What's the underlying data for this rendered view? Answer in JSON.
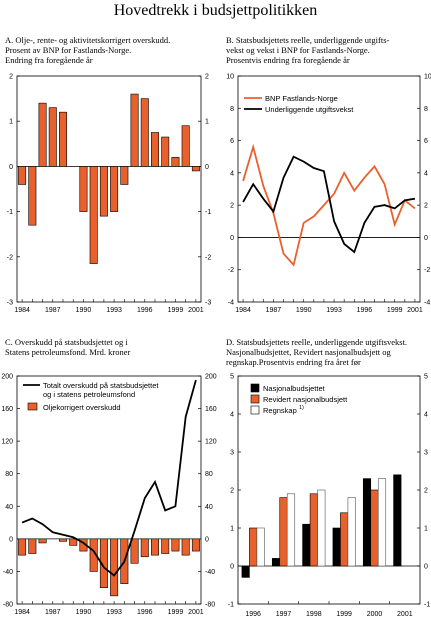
{
  "page_title": "Hovedtrekk i budsjettpolitikken",
  "colors": {
    "orange": "#E8612C",
    "black": "#000000",
    "white": "#ffffff"
  },
  "chart_data": [
    {
      "id": "A",
      "type": "bar",
      "title_lines": [
        "A.  Olje-, rente- og aktivitetskorrigert overskudd.",
        "Prosent av BNP  for Fastlands-Norge.",
        "Endring fra foregående år"
      ],
      "x": [
        1984,
        1985,
        1986,
        1987,
        1988,
        1989,
        1990,
        1991,
        1992,
        1993,
        1994,
        1995,
        1996,
        1997,
        1998,
        1999,
        2000,
        2001
      ],
      "values": [
        -0.4,
        -1.3,
        1.4,
        1.3,
        1.2,
        0.0,
        -1.0,
        -2.15,
        -1.1,
        -1.0,
        -0.4,
        1.6,
        1.5,
        0.75,
        0.65,
        0.2,
        0.9,
        -0.1
      ],
      "x_tick_labels": [
        "1984",
        "1987",
        "1990",
        "1993",
        "1996",
        "1999",
        "2001"
      ],
      "ylim": [
        -3,
        2
      ],
      "y_ticks": [
        -3,
        -2,
        -1,
        0,
        1,
        2
      ],
      "y_tick_labels_left": [
        "-3",
        "-2",
        "-1",
        "0",
        "1",
        "2"
      ],
      "y_tick_labels_right": [
        "-3",
        "-2",
        "-1",
        "0",
        "1",
        "2"
      ],
      "bar_color": "#E8612C"
    },
    {
      "id": "B",
      "type": "line",
      "title_lines": [
        "B.  Statsbudsjettets reelle, underliggende utgifts-",
        "vekst og vekst i BNP for Fastlands-Norge.",
        "Prosentvis endring fra foregående år"
      ],
      "x": [
        1984,
        1985,
        1986,
        1987,
        1988,
        1989,
        1990,
        1991,
        1992,
        1993,
        1994,
        1995,
        1996,
        1997,
        1998,
        1999,
        2000,
        2001
      ],
      "series": [
        {
          "name": "BNP Fastlands-Norge",
          "color": "#E8612C",
          "values": [
            3.5,
            5.6,
            3.2,
            1.5,
            -1.0,
            -1.7,
            0.9,
            1.3,
            2.0,
            2.7,
            4.0,
            2.9,
            3.7,
            4.4,
            3.3,
            0.8,
            2.3,
            1.8
          ]
        },
        {
          "name": "Underliggende utgiftsvekst",
          "color": "#000000",
          "values": [
            2.2,
            3.3,
            2.4,
            1.6,
            3.7,
            5.0,
            4.7,
            4.3,
            4.1,
            1.0,
            -0.4,
            -0.9,
            0.9,
            1.9,
            2.0,
            1.8,
            2.3,
            2.4
          ]
        }
      ],
      "x_tick_labels": [
        "1984",
        "1987",
        "1990",
        "1993",
        "1996",
        "1999",
        "2001"
      ],
      "ylim": [
        -4,
        10
      ],
      "y_ticks": [
        -4,
        -2,
        0,
        2,
        4,
        6,
        8,
        10
      ],
      "y_tick_labels_left": [
        "-4",
        "-2",
        "0",
        "2",
        "4",
        "6",
        "8",
        "10"
      ],
      "y_tick_labels_right": [
        "-4",
        "-2",
        "0",
        "2",
        "4",
        "6",
        "8",
        "10"
      ]
    },
    {
      "id": "C",
      "type": "bar",
      "title_lines": [
        "C.  Overskudd på statsbudsjettet og i",
        "Statens petroleumsfond. Mrd. kroner"
      ],
      "x": [
        1984,
        1985,
        1986,
        1987,
        1988,
        1989,
        1990,
        1991,
        1992,
        1993,
        1994,
        1995,
        1996,
        1997,
        1998,
        1999,
        2000,
        2001
      ],
      "series": [
        {
          "name": "Oljekorrigert overskudd",
          "kind": "bar",
          "color": "#E8612C",
          "values": [
            -20,
            -18,
            -5,
            0,
            -3,
            -8,
            -15,
            -40,
            -60,
            -70,
            -55,
            -30,
            -22,
            -20,
            -18,
            -15,
            -20,
            -15
          ]
        },
        {
          "name_lines": [
            "Totalt overskudd på statsbudsjettet",
            "og i statens petroleumsfond"
          ],
          "kind": "line",
          "color": "#000000",
          "values": [
            20,
            25,
            18,
            8,
            5,
            2,
            -5,
            -15,
            -35,
            -45,
            -28,
            10,
            50,
            70,
            35,
            40,
            150,
            195
          ]
        }
      ],
      "x_tick_labels": [
        "1984",
        "1987",
        "1990",
        "1993",
        "1996",
        "1999",
        "2001"
      ],
      "ylim": [
        -80,
        200
      ],
      "y_ticks": [
        -80,
        -40,
        0,
        40,
        80,
        120,
        160,
        200
      ],
      "y_tick_labels_left": [
        "-80",
        "-40",
        "0",
        "40",
        "80",
        "120",
        "160",
        "200"
      ],
      "y_tick_labels_right": [
        "-80",
        "-40",
        "0",
        "40",
        "80",
        "120",
        "160",
        "200"
      ]
    },
    {
      "id": "D",
      "type": "bar",
      "title_lines": [
        "D.  Statsbudsjettets reelle, underliggende utgiftsvekst.",
        "Nasjonalbudsjettet, Revidert nasjonalbudsjett og",
        "regnskap.Prosentvis endring fra året før"
      ],
      "categories": [
        "1996",
        "1997",
        "1998",
        "1999",
        "2000",
        "2001"
      ],
      "series": [
        {
          "name": "Nasjonalbudsjettet",
          "color": "#000000",
          "values": [
            -0.3,
            0.2,
            1.1,
            1.0,
            2.3,
            2.4
          ]
        },
        {
          "name": "Revidert nasjonalbudsjett",
          "color": "#E8612C",
          "values": [
            1.0,
            1.8,
            1.9,
            1.4,
            2.0,
            null
          ]
        },
        {
          "name": "Regnskap",
          "legend_superscript": "1)",
          "color": "#ffffff",
          "values": [
            1.0,
            1.9,
            2.0,
            1.8,
            2.3,
            null
          ]
        }
      ],
      "ylim": [
        -1,
        5
      ],
      "y_ticks": [
        -1,
        0,
        1,
        2,
        3,
        4,
        5
      ],
      "y_tick_labels_left": [
        "-1",
        "0",
        "1",
        "2",
        "3",
        "4",
        "5"
      ],
      "y_tick_labels_right": [
        "-1",
        "0",
        "1",
        "2",
        "3",
        "4",
        "5"
      ]
    }
  ]
}
